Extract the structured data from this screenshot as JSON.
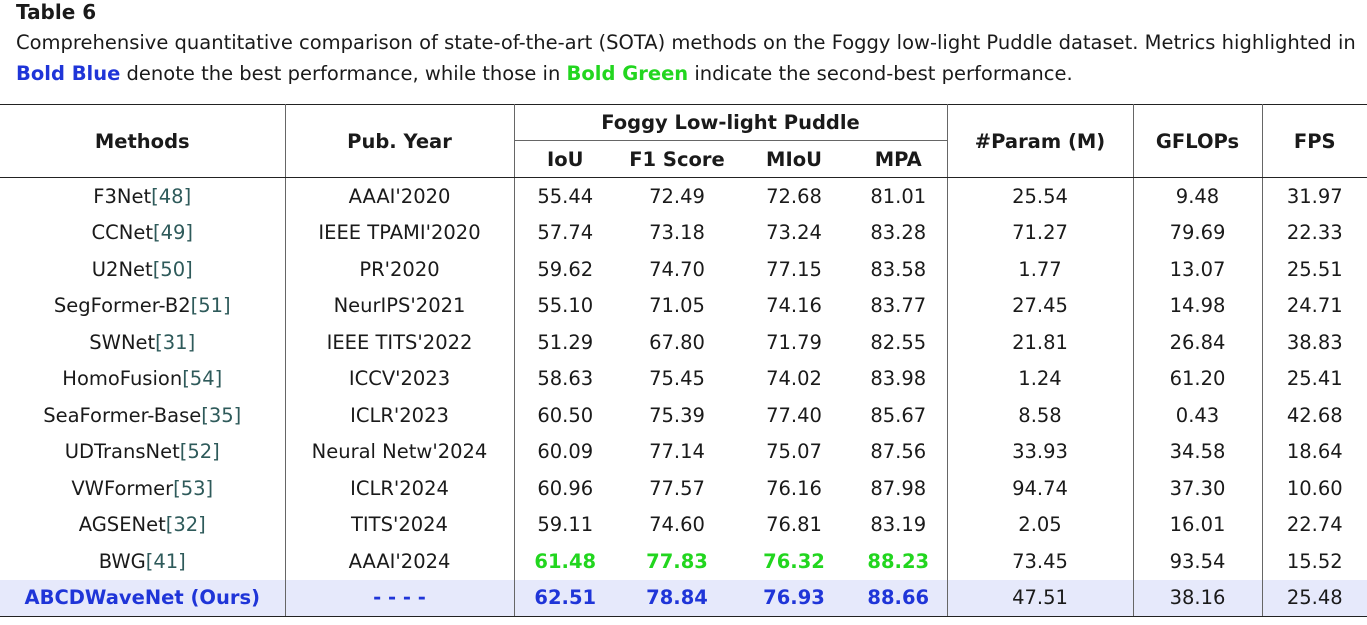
{
  "table_label": "Table 6",
  "caption": {
    "part1": "Comprehensive quantitative comparison of state-of-the-art (SOTA) methods on the Foggy low-light Puddle dataset. Metrics highlighted in ",
    "bold_blue": "Bold Blue",
    "part2": " denote the best performance, while those in ",
    "bold_green": "Bold Green",
    "part3": " indicate the second-best performance."
  },
  "header": {
    "methods": "Methods",
    "pub_year": "Pub. Year",
    "group": "Foggy Low-light Puddle",
    "iou": "IoU",
    "f1": "F1 Score",
    "miou": "MIoU",
    "mpa": "MPA",
    "params": "#Param (M)",
    "gflops": "GFLOPs",
    "fps": "FPS"
  },
  "rows": [
    {
      "name": "F3Net",
      "ref": "[48]",
      "year": "AAAI'2020",
      "iou": "55.44",
      "f1": "72.49",
      "miou": "72.68",
      "mpa": "81.01",
      "params": "25.54",
      "gflops": "9.48",
      "fps": "31.97"
    },
    {
      "name": "CCNet",
      "ref": "[49]",
      "year": "IEEE TPAMI'2020",
      "iou": "57.74",
      "f1": "73.18",
      "miou": "73.24",
      "mpa": "83.28",
      "params": "71.27",
      "gflops": "79.69",
      "fps": "22.33"
    },
    {
      "name": "U2Net",
      "ref": "[50]",
      "year": "PR'2020",
      "iou": "59.62",
      "f1": "74.70",
      "miou": "77.15",
      "mpa": "83.58",
      "params": "1.77",
      "gflops": "13.07",
      "fps": "25.51"
    },
    {
      "name": "SegFormer-B2",
      "ref": "[51]",
      "year": "NeurIPS'2021",
      "iou": "55.10",
      "f1": "71.05",
      "miou": "74.16",
      "mpa": "83.77",
      "params": "27.45",
      "gflops": "14.98",
      "fps": "24.71"
    },
    {
      "name": "SWNet",
      "ref": "[31]",
      "year": "IEEE TITS'2022",
      "iou": "51.29",
      "f1": "67.80",
      "miou": "71.79",
      "mpa": "82.55",
      "params": "21.81",
      "gflops": "26.84",
      "fps": "38.83"
    },
    {
      "name": "HomoFusion",
      "ref": "[54]",
      "year": "ICCV'2023",
      "iou": "58.63",
      "f1": "75.45",
      "miou": "74.02",
      "mpa": "83.98",
      "params": "1.24",
      "gflops": "61.20",
      "fps": "25.41"
    },
    {
      "name": "SeaFormer-Base",
      "ref": "[35]",
      "year": "ICLR'2023",
      "iou": "60.50",
      "f1": "75.39",
      "miou": "77.40",
      "mpa": "85.67",
      "params": "8.58",
      "gflops": "0.43",
      "fps": "42.68"
    },
    {
      "name": "UDTransNet",
      "ref": "[52]",
      "year": "Neural Netw'2024",
      "iou": "60.09",
      "f1": "77.14",
      "miou": "75.07",
      "mpa": "87.56",
      "params": "33.93",
      "gflops": "34.58",
      "fps": "18.64"
    },
    {
      "name": "VWFormer",
      "ref": "[53]",
      "year": "ICLR'2024",
      "iou": "60.96",
      "f1": "77.57",
      "miou": "76.16",
      "mpa": "87.98",
      "params": "94.74",
      "gflops": "37.30",
      "fps": "10.60"
    },
    {
      "name": "AGSENet",
      "ref": "[32]",
      "year": "TITS'2024",
      "iou": "59.11",
      "f1": "74.60",
      "miou": "76.81",
      "mpa": "83.19",
      "params": "2.05",
      "gflops": "16.01",
      "fps": "22.74"
    },
    {
      "name": "BWG",
      "ref": "[41]",
      "year": "AAAI'2024",
      "iou": "61.48",
      "f1": "77.83",
      "miou": "76.32",
      "mpa": "88.23",
      "params": "73.45",
      "gflops": "93.54",
      "fps": "15.52"
    },
    {
      "name": "ABCDWaveNet (Ours)",
      "ref": "",
      "year": "- - - -",
      "iou": "62.51",
      "f1": "78.84",
      "miou": "76.93",
      "mpa": "88.66",
      "params": "47.51",
      "gflops": "38.16",
      "fps": "25.48"
    }
  ],
  "colors": {
    "best": "#1f35d8",
    "second_best": "#22d61f",
    "ours_row_bg": "#e6e9fb"
  }
}
